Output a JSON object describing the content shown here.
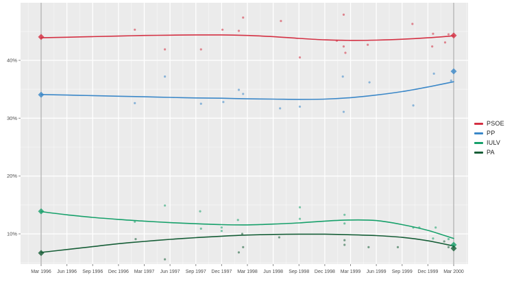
{
  "chart_data": {
    "type": "line",
    "title": "",
    "xlabel": "",
    "ylabel": "",
    "x_unit": "months since Mar 1996",
    "x_tick_labels": [
      "Mar 1996",
      "Jun 1996",
      "Sep 1996",
      "Dec 1996",
      "Mar 1997",
      "Jun 1997",
      "Sep 1997",
      "Dec 1997",
      "Mar 1998",
      "Jun 1998",
      "Sep 1998",
      "Dec 1998",
      "Mar 1999",
      "Jun 1999",
      "Sep 1999",
      "Dec 1999",
      "Mar 2000"
    ],
    "x_tick_months": [
      0,
      3,
      6,
      9,
      12,
      15,
      18,
      21,
      24,
      27,
      30,
      33,
      36,
      39,
      42,
      45,
      48
    ],
    "y_tick_labels": [
      "10%",
      "20%",
      "30%",
      "40%"
    ],
    "y_tick_values": [
      10,
      20,
      30,
      40
    ],
    "y_minor_values": [
      5,
      15,
      25,
      35,
      45
    ],
    "ylim": [
      4.8,
      50
    ],
    "xlim_months": [
      -2.4,
      49.7
    ],
    "grid": "on",
    "legend_position": "right-outside",
    "panel_background": "#ebebeb",
    "grid_major_color": "#ffffff",
    "election_line_color": "#9a9a9a",
    "election_lines_months": [
      0,
      48
    ],
    "trend_months": [
      0,
      3,
      6,
      9,
      12,
      15,
      18,
      21,
      24,
      27,
      30,
      33,
      36,
      39,
      42,
      45,
      48
    ],
    "series": [
      {
        "name": "PSOE",
        "color": "#d42f42",
        "trend_values": [
          43.9,
          44.0,
          44.1,
          44.2,
          44.3,
          44.35,
          44.4,
          44.4,
          44.3,
          44.1,
          43.8,
          43.55,
          43.45,
          43.5,
          43.65,
          43.9,
          44.25
        ],
        "polls": [
          [
            10.9,
            45.3
          ],
          [
            14.4,
            41.9
          ],
          [
            18.6,
            41.9
          ],
          [
            21.1,
            45.3
          ],
          [
            23.0,
            45.1
          ],
          [
            23.5,
            47.4
          ],
          [
            27.9,
            46.8
          ],
          [
            30.1,
            40.5
          ],
          [
            34.4,
            43.4
          ],
          [
            35.2,
            47.9
          ],
          [
            35.2,
            42.4
          ],
          [
            35.4,
            41.3
          ],
          [
            38.0,
            42.7
          ],
          [
            43.2,
            46.3
          ],
          [
            45.5,
            42.4
          ],
          [
            45.6,
            44.6
          ],
          [
            47.0,
            43.1
          ],
          [
            47.4,
            44.5
          ]
        ],
        "elections": [
          [
            0,
            44.05
          ],
          [
            48,
            44.3
          ]
        ]
      },
      {
        "name": "PP",
        "color": "#3a87c8",
        "trend_values": [
          34.1,
          34.0,
          33.9,
          33.8,
          33.7,
          33.6,
          33.5,
          33.45,
          33.35,
          33.3,
          33.25,
          33.3,
          33.55,
          34.0,
          34.6,
          35.4,
          36.3
        ],
        "polls": [
          [
            10.9,
            32.6
          ],
          [
            14.4,
            37.2
          ],
          [
            18.6,
            32.5
          ],
          [
            21.2,
            32.8
          ],
          [
            23.0,
            34.9
          ],
          [
            23.5,
            34.2
          ],
          [
            27.8,
            31.7
          ],
          [
            30.1,
            32.0
          ],
          [
            35.1,
            37.2
          ],
          [
            35.2,
            31.1
          ],
          [
            38.2,
            36.2
          ],
          [
            43.3,
            32.2
          ],
          [
            45.7,
            37.7
          ],
          [
            47.7,
            36.5
          ]
        ],
        "elections": [
          [
            0,
            34.05
          ],
          [
            48,
            38.1
          ]
        ]
      },
      {
        "name": "IULV",
        "color": "#16a06a",
        "trend_values": [
          13.85,
          13.3,
          12.85,
          12.5,
          12.2,
          11.95,
          11.75,
          11.6,
          11.55,
          11.7,
          11.9,
          12.2,
          12.4,
          12.3,
          11.6,
          10.6,
          9.2
        ],
        "polls": [
          [
            10.9,
            12.1
          ],
          [
            14.4,
            14.9
          ],
          [
            18.5,
            13.9
          ],
          [
            18.6,
            10.9
          ],
          [
            21.0,
            11.1
          ],
          [
            21.0,
            10.5
          ],
          [
            22.9,
            12.4
          ],
          [
            30.1,
            14.6
          ],
          [
            30.1,
            12.6
          ],
          [
            35.3,
            13.3
          ],
          [
            35.3,
            11.8
          ],
          [
            43.3,
            11.1
          ],
          [
            44.0,
            11.1
          ],
          [
            45.9,
            11.1
          ],
          [
            45.6,
            9.2
          ],
          [
            47.4,
            9.1
          ]
        ],
        "elections": [
          [
            0,
            13.9
          ],
          [
            48,
            8.1
          ]
        ]
      },
      {
        "name": "PA",
        "color": "#155d36",
        "trend_values": [
          6.8,
          7.3,
          7.8,
          8.3,
          8.7,
          9.05,
          9.35,
          9.6,
          9.8,
          9.9,
          9.95,
          9.95,
          9.85,
          9.7,
          9.4,
          8.8,
          7.9
        ],
        "polls": [
          [
            11.0,
            9.1
          ],
          [
            14.4,
            5.6
          ],
          [
            23.0,
            6.8
          ],
          [
            23.4,
            10.0
          ],
          [
            23.5,
            7.7
          ],
          [
            27.7,
            9.4
          ],
          [
            35.3,
            8.9
          ],
          [
            35.3,
            8.1
          ],
          [
            38.1,
            7.7
          ],
          [
            41.5,
            7.7
          ],
          [
            46.9,
            8.7
          ],
          [
            47.4,
            7.7
          ]
        ],
        "elections": [
          [
            0,
            6.7
          ],
          [
            48,
            7.5
          ]
        ]
      }
    ]
  }
}
